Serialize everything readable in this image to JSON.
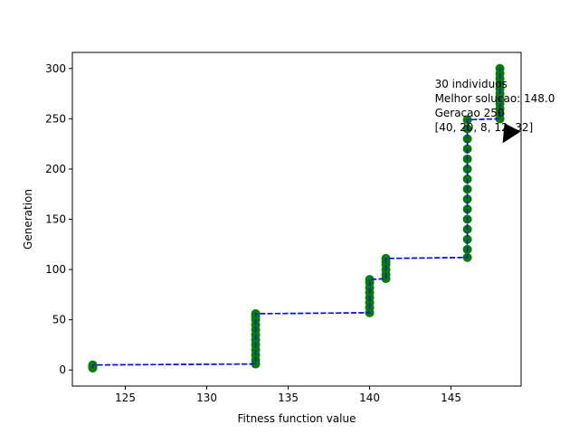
{
  "chart_data": {
    "type": "line",
    "title": "",
    "xlabel": "Fitness function value",
    "ylabel": "Generation",
    "xlim": [
      121.75,
      149.3
    ],
    "ylim": [
      -16,
      316
    ],
    "xticks": [
      125,
      130,
      135,
      140,
      145
    ],
    "yticks": [
      0,
      50,
      100,
      150,
      200,
      250,
      300
    ],
    "grid": false,
    "legend": "none",
    "series": [
      {
        "line_color": "#0000ff",
        "line_style": "dashed",
        "marker_color": "#008000",
        "points": [
          [
            123,
            2
          ],
          [
            123,
            3
          ],
          [
            123,
            4
          ],
          [
            123,
            5
          ],
          [
            133,
            6
          ],
          [
            133,
            10
          ],
          [
            133,
            15
          ],
          [
            133,
            20
          ],
          [
            133,
            25
          ],
          [
            133,
            30
          ],
          [
            133,
            35
          ],
          [
            133,
            40
          ],
          [
            133,
            45
          ],
          [
            133,
            50
          ],
          [
            133,
            53
          ],
          [
            133,
            56
          ],
          [
            140,
            57
          ],
          [
            140,
            62
          ],
          [
            140,
            67
          ],
          [
            140,
            72
          ],
          [
            140,
            77
          ],
          [
            140,
            82
          ],
          [
            140,
            87
          ],
          [
            140,
            90
          ],
          [
            141,
            91
          ],
          [
            141,
            95
          ],
          [
            141,
            100
          ],
          [
            141,
            105
          ],
          [
            141,
            108
          ],
          [
            141,
            111
          ],
          [
            146,
            112
          ],
          [
            146,
            120
          ],
          [
            146,
            130
          ],
          [
            146,
            140
          ],
          [
            146,
            150
          ],
          [
            146,
            160
          ],
          [
            146,
            170
          ],
          [
            146,
            180
          ],
          [
            146,
            190
          ],
          [
            146,
            200
          ],
          [
            146,
            210
          ],
          [
            146,
            220
          ],
          [
            146,
            230
          ],
          [
            146,
            240
          ],
          [
            146,
            249
          ],
          [
            148,
            250
          ],
          [
            148,
            255
          ],
          [
            148,
            260
          ],
          [
            148,
            265
          ],
          [
            148,
            270
          ],
          [
            148,
            275
          ],
          [
            148,
            280
          ],
          [
            148,
            285
          ],
          [
            148,
            290
          ],
          [
            148,
            295
          ],
          [
            148,
            300
          ]
        ]
      }
    ],
    "annotation": {
      "lines": [
        "30 individuos",
        "Melhor solucao: 148.0",
        "Geracao 250",
        "[40, 20, 8, 12, 32]"
      ],
      "point": [
        148,
        250
      ],
      "text_at": [
        144,
        270
      ],
      "arrow_color": "#000000"
    }
  }
}
